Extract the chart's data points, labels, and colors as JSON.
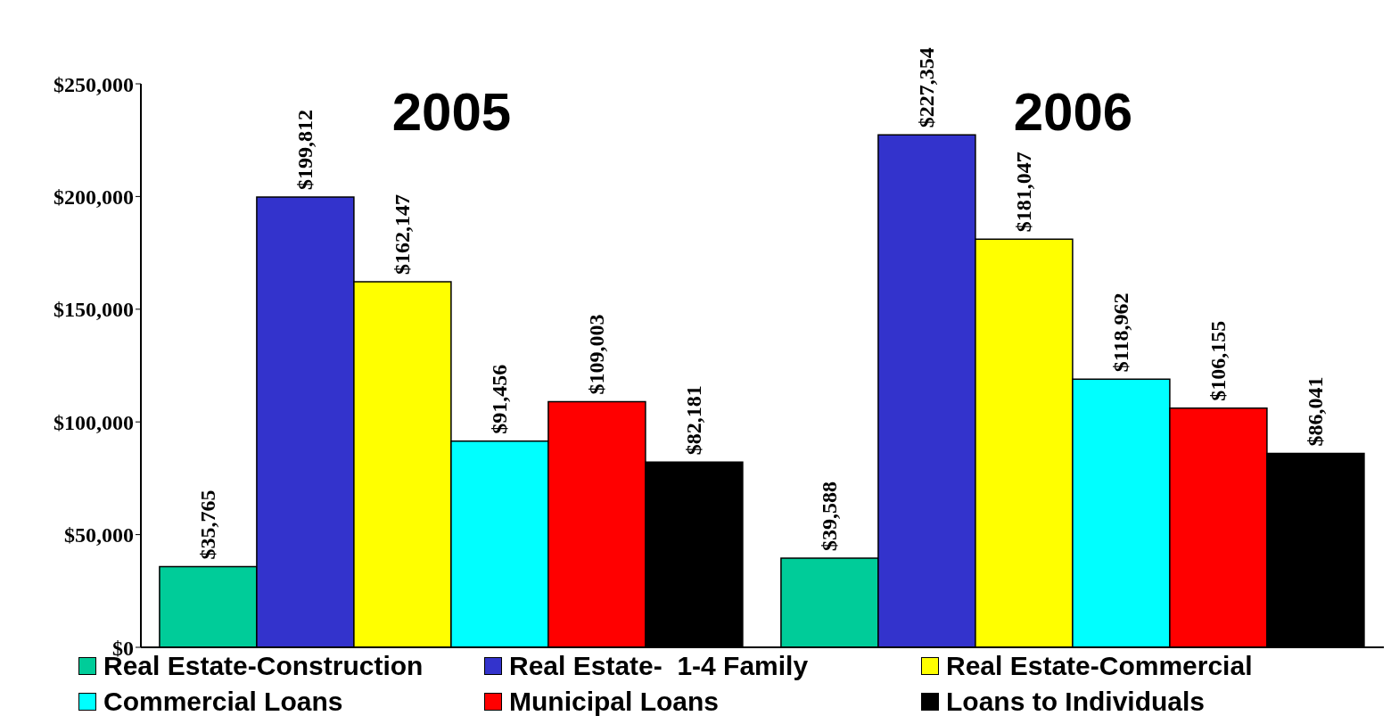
{
  "chart_data": {
    "type": "bar",
    "categories": [
      "2005",
      "2006"
    ],
    "series": [
      {
        "name": "Real Estate-Construction",
        "color": "#00cc99",
        "values": [
          35765,
          39588
        ]
      },
      {
        "name": "Real Estate-  1-4 Family",
        "color": "#3333cc",
        "values": [
          199812,
          227354
        ]
      },
      {
        "name": "Real Estate-Commercial",
        "color": "#ffff00",
        "values": [
          162147,
          181047
        ]
      },
      {
        "name": "Commercial Loans",
        "color": "#00ffff",
        "values": [
          91456,
          118962
        ]
      },
      {
        "name": "Municipal Loans",
        "color": "#ff0000",
        "values": [
          109003,
          106155
        ]
      },
      {
        "name": "Loans to Individuals",
        "color": "#000000",
        "values": [
          82181,
          86041
        ]
      }
    ],
    "ylim": [
      0,
      250000
    ],
    "yticks": [
      {
        "value": 0,
        "label": "$0"
      },
      {
        "value": 50000,
        "label": "$50,000"
      },
      {
        "value": 100000,
        "label": "$100,000"
      },
      {
        "value": 150000,
        "label": "$150,000"
      },
      {
        "value": 200000,
        "label": "$200,000"
      },
      {
        "value": 250000,
        "label": "$250,000"
      }
    ],
    "value_labels": [
      [
        "$35,765",
        "$39,588"
      ],
      [
        "$199,812",
        "$227,354"
      ],
      [
        "$162,147",
        "$181,047"
      ],
      [
        "$91,456",
        "$118,962"
      ],
      [
        "$109,003",
        "$106,155"
      ],
      [
        "$82,181",
        "$86,041"
      ]
    ],
    "grid": false,
    "legend": "bottom"
  }
}
